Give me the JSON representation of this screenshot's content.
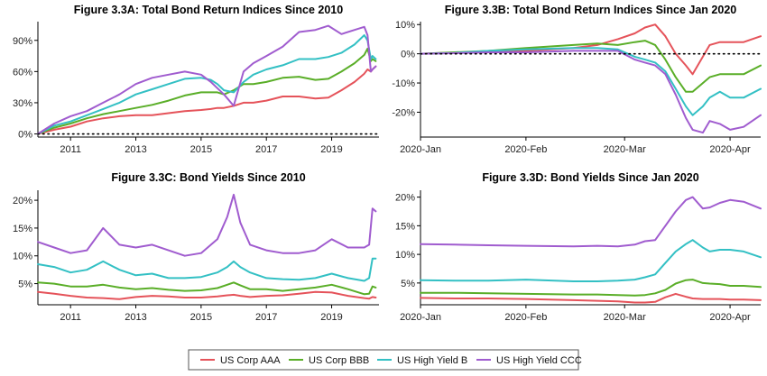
{
  "colors": {
    "aaa": "#e5535a",
    "bbb": "#5aae28",
    "hyb": "#33c0c4",
    "ccc": "#a05ccf"
  },
  "legend": {
    "items": [
      {
        "name": "US Corp AAA",
        "color": "#e5535a"
      },
      {
        "name": "US Corp BBB",
        "color": "#5aae28"
      },
      {
        "name": "US High Yield B",
        "color": "#33c0c4"
      },
      {
        "name": "US High Yield CCC",
        "color": "#a05ccf"
      }
    ]
  },
  "chart_data": [
    {
      "id": "A",
      "type": "line",
      "title": "Figure 3.3A: Total Bond Return Indices Since 2010",
      "xlabel": "",
      "ylabel": "",
      "xlim": [
        2010.0,
        2020.45
      ],
      "ylim": [
        -3,
        108
      ],
      "xticks": [
        2011,
        2013,
        2015,
        2017,
        2019
      ],
      "xticklabels": [
        "2011",
        "2013",
        "2015",
        "2017",
        "2019"
      ],
      "yticks": [
        0,
        30,
        60,
        90
      ],
      "yticklabels": [
        "0%",
        "30%",
        "60%",
        "90%"
      ],
      "reference_line": {
        "y": 0,
        "style": "dotted"
      },
      "x": [
        2010.0,
        2010.5,
        2011.0,
        2011.5,
        2012.0,
        2012.5,
        2013.0,
        2013.5,
        2014.0,
        2014.5,
        2015.0,
        2015.3,
        2015.5,
        2015.7,
        2016.0,
        2016.3,
        2016.6,
        2017.0,
        2017.5,
        2018.0,
        2018.5,
        2018.9,
        2019.3,
        2019.7,
        2020.0,
        2020.1,
        2020.2,
        2020.25,
        2020.35
      ],
      "series": [
        {
          "name": "US Corp AAA",
          "values": [
            0,
            4,
            7,
            12,
            15,
            17,
            18,
            18,
            20,
            22,
            23,
            24,
            25,
            25,
            27,
            30,
            30,
            32,
            36,
            36,
            34,
            35,
            42,
            50,
            58,
            62,
            60,
            62,
            65
          ]
        },
        {
          "name": "US Corp BBB",
          "values": [
            0,
            6,
            10,
            15,
            19,
            22,
            25,
            28,
            32,
            37,
            40,
            40,
            40,
            38,
            42,
            48,
            48,
            50,
            54,
            55,
            52,
            53,
            60,
            68,
            76,
            82,
            70,
            72,
            70
          ]
        },
        {
          "name": "US High Yield B",
          "values": [
            0,
            8,
            12,
            18,
            24,
            30,
            38,
            43,
            48,
            53,
            54,
            52,
            48,
            42,
            40,
            50,
            57,
            62,
            66,
            72,
            72,
            74,
            78,
            86,
            95,
            90,
            72,
            75,
            72
          ]
        },
        {
          "name": "US High Yield CCC",
          "values": [
            0,
            10,
            17,
            22,
            30,
            38,
            48,
            54,
            57,
            60,
            57,
            50,
            44,
            38,
            27,
            60,
            68,
            75,
            84,
            98,
            100,
            104,
            96,
            100,
            103,
            95,
            60,
            62,
            65
          ]
        }
      ]
    },
    {
      "id": "B",
      "type": "line",
      "title": "Figure 3.3B: Total Bond Return Indices Since Jan 2020",
      "xlabel": "",
      "ylabel": "",
      "xlim": [
        0,
        100
      ],
      "ylim": [
        -28.5,
        11
      ],
      "xticks": [
        0,
        31,
        60,
        91
      ],
      "xticklabels": [
        "2020-Jan",
        "2020-Feb",
        "2020-Mar",
        "2020-Apr"
      ],
      "yticks": [
        -20,
        -10,
        0,
        10
      ],
      "yticklabels": [
        "-20%",
        "-10%",
        "0%",
        "10%"
      ],
      "reference_line": {
        "y": 0,
        "style": "dotted"
      },
      "x": [
        0,
        10,
        20,
        31,
        45,
        52,
        58,
        63,
        66,
        69,
        72,
        75,
        78,
        80,
        83,
        85,
        88,
        91,
        95,
        100
      ],
      "series": [
        {
          "name": "US Corp AAA",
          "values": [
            0,
            0.4,
            0.6,
            1,
            2,
            3,
            5,
            7,
            9,
            10,
            6,
            0,
            -4,
            -7,
            -1,
            3,
            4,
            4,
            4,
            6
          ]
        },
        {
          "name": "US Corp BBB",
          "values": [
            0,
            0.5,
            1,
            2,
            3,
            3.5,
            3,
            4,
            4.5,
            3,
            -2,
            -8,
            -13,
            -13,
            -10,
            -8,
            -7,
            -7,
            -7,
            -4
          ]
        },
        {
          "name": "US High Yield B",
          "values": [
            0,
            0.3,
            1,
            1.5,
            2,
            2,
            1.5,
            -1,
            -2,
            -3,
            -6,
            -12,
            -18,
            -21,
            -18,
            -15,
            -13,
            -15,
            -15,
            -12
          ]
        },
        {
          "name": "US High Yield CCC",
          "values": [
            0,
            0.2,
            0.5,
            0.5,
            1,
            1,
            1,
            -2,
            -3,
            -4,
            -7,
            -14,
            -22,
            -26,
            -27,
            -23,
            -24,
            -26,
            -25,
            -21
          ]
        }
      ]
    },
    {
      "id": "C",
      "type": "line",
      "title": "Figure 3.3C: Bond Yields Since 2010",
      "xlabel": "",
      "ylabel": "",
      "xlim": [
        2010.0,
        2020.45
      ],
      "ylim": [
        1.2,
        21.8
      ],
      "xticks": [
        2011,
        2013,
        2015,
        2017,
        2019
      ],
      "xticklabels": [
        "2011",
        "2013",
        "2015",
        "2017",
        "2019"
      ],
      "yticks": [
        5,
        10,
        15,
        20
      ],
      "yticklabels": [
        "5%",
        "10%",
        "15%",
        "20%"
      ],
      "x": [
        2010.0,
        2010.5,
        2011.0,
        2011.5,
        2012.0,
        2012.5,
        2013.0,
        2013.5,
        2014.0,
        2014.5,
        2015.0,
        2015.5,
        2015.8,
        2016.0,
        2016.2,
        2016.5,
        2017.0,
        2017.5,
        2018.0,
        2018.5,
        2019.0,
        2019.5,
        2020.0,
        2020.15,
        2020.25,
        2020.35
      ],
      "series": [
        {
          "name": "US Corp AAA",
          "values": [
            3.5,
            3.2,
            2.8,
            2.5,
            2.4,
            2.2,
            2.6,
            2.8,
            2.7,
            2.5,
            2.5,
            2.7,
            2.9,
            3.0,
            2.8,
            2.6,
            2.8,
            2.9,
            3.2,
            3.5,
            3.4,
            2.8,
            2.4,
            2.3,
            2.6,
            2.5
          ]
        },
        {
          "name": "US Corp BBB",
          "values": [
            5.2,
            5.0,
            4.5,
            4.5,
            4.8,
            4.3,
            4.0,
            4.2,
            3.9,
            3.7,
            3.8,
            4.2,
            4.8,
            5.2,
            4.7,
            4.0,
            4.0,
            3.7,
            4.0,
            4.3,
            4.8,
            4.0,
            3.1,
            3.2,
            4.5,
            4.3
          ]
        },
        {
          "name": "US High Yield B",
          "values": [
            8.5,
            8.0,
            7.0,
            7.5,
            9.0,
            7.5,
            6.5,
            6.8,
            6.0,
            6.0,
            6.2,
            7.0,
            8.0,
            9.0,
            8.0,
            7.0,
            6.0,
            5.8,
            5.7,
            6.0,
            6.8,
            6.0,
            5.5,
            6.0,
            9.5,
            9.5
          ]
        },
        {
          "name": "US High Yield CCC",
          "values": [
            12.5,
            11.5,
            10.5,
            11.0,
            15.0,
            12.0,
            11.5,
            12.0,
            11.0,
            10.0,
            10.5,
            13.0,
            17.0,
            21.0,
            16.0,
            12.0,
            11.0,
            10.5,
            10.5,
            11.0,
            13.0,
            11.5,
            11.5,
            12.0,
            18.5,
            18.0
          ]
        }
      ]
    },
    {
      "id": "D",
      "type": "line",
      "title": "Figure 3.3D: Bond Yields Since Jan 2020",
      "xlabel": "",
      "ylabel": "",
      "xlim": [
        0,
        100
      ],
      "ylim": [
        1.2,
        21.2
      ],
      "xticks": [
        0,
        31,
        60,
        91
      ],
      "xticklabels": [
        "2020-Jan",
        "2020-Feb",
        "2020-Mar",
        "2020-Apr"
      ],
      "yticks": [
        5,
        10,
        15,
        20
      ],
      "yticklabels": [
        "5%",
        "10%",
        "15%",
        "20%"
      ],
      "x": [
        0,
        10,
        20,
        31,
        45,
        52,
        58,
        63,
        66,
        69,
        72,
        75,
        78,
        80,
        83,
        85,
        88,
        91,
        95,
        100
      ],
      "series": [
        {
          "name": "US Corp AAA",
          "values": [
            2.4,
            2.3,
            2.3,
            2.2,
            2.0,
            1.9,
            1.8,
            1.6,
            1.6,
            1.7,
            2.5,
            3.1,
            2.6,
            2.3,
            2.2,
            2.2,
            2.2,
            2.1,
            2.1,
            2.0
          ]
        },
        {
          "name": "US Corp BBB",
          "values": [
            3.3,
            3.3,
            3.2,
            3.1,
            3.0,
            3.0,
            2.9,
            2.8,
            2.9,
            3.2,
            3.8,
            4.9,
            5.5,
            5.6,
            5.0,
            4.9,
            4.8,
            4.5,
            4.5,
            4.3
          ]
        },
        {
          "name": "US High Yield B",
          "values": [
            5.5,
            5.4,
            5.4,
            5.6,
            5.3,
            5.3,
            5.4,
            5.6,
            6.0,
            6.5,
            8.5,
            10.5,
            11.8,
            12.5,
            11.2,
            10.5,
            10.8,
            10.8,
            10.5,
            9.5
          ]
        },
        {
          "name": "US High Yield CCC",
          "values": [
            11.8,
            11.7,
            11.6,
            11.5,
            11.4,
            11.5,
            11.4,
            11.7,
            12.3,
            12.5,
            15.0,
            17.5,
            19.5,
            20.0,
            18.0,
            18.2,
            19.0,
            19.5,
            19.2,
            18.0
          ]
        }
      ]
    }
  ]
}
